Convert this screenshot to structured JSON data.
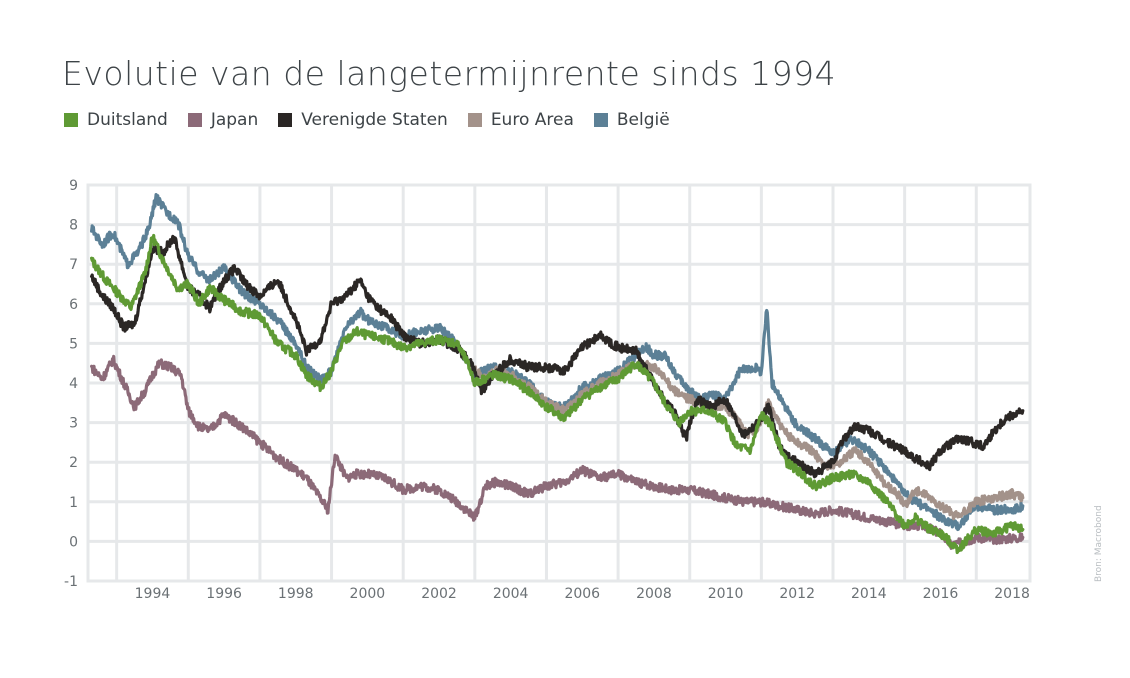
{
  "chart_data": {
    "type": "line",
    "title": "Evolutie van de langetermijnrente sinds 1994",
    "xlabel": "",
    "ylabel": "",
    "xlim": [
      1992.2,
      2018.5
    ],
    "ylim": [
      -1,
      9
    ],
    "y_ticks": [
      "9",
      "8",
      "7",
      "6",
      "5",
      "4",
      "3",
      "2",
      "1",
      "0",
      "-1"
    ],
    "x_ticks": [
      "1994",
      "1996",
      "1998",
      "2000",
      "2002",
      "2004",
      "2006",
      "2008",
      "2010",
      "2012",
      "2014",
      "2016",
      "2018"
    ],
    "grid": true,
    "legend_position": "top-left",
    "series": [
      {
        "name": "Duitsland",
        "color": "#5f9a34",
        "x": [
          1992.3,
          1992.7,
          1993.0,
          1993.4,
          1993.8,
          1994.0,
          1994.3,
          1994.7,
          1995.0,
          1995.3,
          1995.6,
          1996.0,
          1996.5,
          1997.0,
          1997.5,
          1998.0,
          1998.3,
          1998.7,
          1999.0,
          1999.3,
          1999.7,
          2000.0,
          2000.5,
          2001.0,
          2001.5,
          2002.0,
          2002.5,
          2002.8,
          2003.0,
          2003.5,
          2004.0,
          2004.5,
          2005.0,
          2005.5,
          2006.0,
          2006.5,
          2007.0,
          2007.5,
          2008.0,
          2008.3,
          2008.7,
          2009.0,
          2009.5,
          2010.0,
          2010.3,
          2010.7,
          2011.0,
          2011.3,
          2011.7,
          2012.0,
          2012.5,
          2013.0,
          2013.5,
          2014.0,
          2014.5,
          2015.0,
          2015.3,
          2015.7,
          2016.0,
          2016.5,
          2017.0,
          2017.5,
          2018.0,
          2018.3
        ],
        "values": [
          7.1,
          6.6,
          6.3,
          5.9,
          6.8,
          7.7,
          7.1,
          6.4,
          6.5,
          6.0,
          6.4,
          6.1,
          5.8,
          5.7,
          5.0,
          4.7,
          4.2,
          3.9,
          4.3,
          5.0,
          5.3,
          5.2,
          5.1,
          4.9,
          5.0,
          5.1,
          5.0,
          4.5,
          4.0,
          4.2,
          4.1,
          3.8,
          3.4,
          3.1,
          3.6,
          3.9,
          4.1,
          4.5,
          4.0,
          3.5,
          3.0,
          3.3,
          3.3,
          3.0,
          2.4,
          2.3,
          3.2,
          2.9,
          2.0,
          1.8,
          1.4,
          1.6,
          1.7,
          1.5,
          1.0,
          0.4,
          0.6,
          0.3,
          0.2,
          -0.2,
          0.3,
          0.2,
          0.4,
          0.3
        ]
      },
      {
        "name": "Japan",
        "color": "#8c6a78",
        "x": [
          1992.3,
          1992.6,
          1992.9,
          1993.2,
          1993.5,
          1993.8,
          1994.0,
          1994.2,
          1994.5,
          1994.8,
          1995.0,
          1995.3,
          1995.6,
          1996.0,
          1996.5,
          1997.0,
          1997.5,
          1998.0,
          1998.3,
          1998.6,
          1998.9,
          1999.1,
          1999.4,
          1999.7,
          2000.0,
          2000.5,
          2001.0,
          2001.5,
          2002.0,
          2002.5,
          2003.0,
          2003.3,
          2003.6,
          2004.0,
          2004.5,
          2005.0,
          2005.5,
          2006.0,
          2006.5,
          2007.0,
          2007.5,
          2008.0,
          2008.5,
          2009.0,
          2009.5,
          2010.0,
          2010.5,
          2011.0,
          2011.5,
          2012.0,
          2012.5,
          2013.0,
          2013.5,
          2014.0,
          2014.5,
          2015.0,
          2015.5,
          2016.0,
          2016.3,
          2016.7,
          2017.0,
          2017.5,
          2018.0,
          2018.3
        ],
        "values": [
          4.4,
          4.1,
          4.6,
          4.0,
          3.4,
          3.8,
          4.2,
          4.5,
          4.4,
          4.2,
          3.3,
          2.9,
          2.8,
          3.2,
          2.9,
          2.5,
          2.1,
          1.8,
          1.6,
          1.2,
          0.8,
          2.2,
          1.6,
          1.7,
          1.7,
          1.6,
          1.3,
          1.4,
          1.3,
          1.0,
          0.6,
          1.4,
          1.5,
          1.4,
          1.2,
          1.4,
          1.5,
          1.8,
          1.6,
          1.7,
          1.5,
          1.4,
          1.3,
          1.3,
          1.2,
          1.1,
          1.0,
          1.0,
          0.9,
          0.8,
          0.7,
          0.8,
          0.7,
          0.6,
          0.5,
          0.4,
          0.4,
          0.2,
          -0.1,
          0.0,
          0.1,
          0.05,
          0.08,
          0.1
        ]
      },
      {
        "name": "Verenigde Staten",
        "color": "#2b2725",
        "x": [
          1992.3,
          1992.6,
          1992.9,
          1993.2,
          1993.5,
          1993.8,
          1994.0,
          1994.3,
          1994.6,
          1995.0,
          1995.3,
          1995.6,
          1996.0,
          1996.3,
          1996.6,
          1997.0,
          1997.5,
          1998.0,
          1998.3,
          1998.7,
          1999.0,
          1999.4,
          1999.8,
          2000.0,
          2000.3,
          2000.7,
          2001.0,
          2001.5,
          2002.0,
          2002.5,
          2002.9,
          2003.2,
          2003.5,
          2004.0,
          2004.5,
          2005.0,
          2005.5,
          2006.0,
          2006.5,
          2007.0,
          2007.5,
          2008.0,
          2008.2,
          2008.6,
          2008.9,
          2009.2,
          2009.6,
          2010.0,
          2010.5,
          2010.9,
          2011.2,
          2011.5,
          2011.8,
          2012.0,
          2012.5,
          2013.0,
          2013.3,
          2013.6,
          2014.0,
          2014.5,
          2015.0,
          2015.3,
          2015.7,
          2016.0,
          2016.5,
          2016.9,
          2017.2,
          2017.5,
          2017.8,
          2018.0,
          2018.3
        ],
        "values": [
          6.7,
          6.2,
          5.9,
          5.4,
          5.5,
          6.6,
          7.4,
          7.3,
          7.7,
          6.4,
          6.2,
          5.9,
          6.6,
          6.9,
          6.5,
          6.2,
          6.6,
          5.6,
          4.8,
          5.1,
          6.0,
          6.2,
          6.6,
          6.2,
          5.9,
          5.6,
          5.2,
          5.0,
          5.1,
          4.9,
          4.5,
          3.8,
          4.2,
          4.6,
          4.4,
          4.4,
          4.3,
          4.9,
          5.2,
          4.9,
          4.8,
          4.0,
          3.7,
          3.2,
          2.6,
          3.6,
          3.4,
          3.6,
          2.7,
          3.0,
          3.4,
          2.4,
          2.1,
          2.0,
          1.7,
          2.0,
          2.6,
          2.9,
          2.8,
          2.5,
          2.3,
          2.1,
          1.9,
          2.3,
          2.6,
          2.5,
          2.4,
          2.8,
          3.1,
          3.2,
          3.3
        ]
      },
      {
        "name": "Euro Area",
        "color": "#a3928a",
        "x": [
          2002.9,
          2003.3,
          2003.6,
          2004.0,
          2004.5,
          2005.0,
          2005.5,
          2006.0,
          2006.5,
          2007.0,
          2007.5,
          2008.0,
          2008.3,
          2008.7,
          2009.0,
          2009.5,
          2010.0,
          2010.3,
          2010.6,
          2010.9,
          2011.2,
          2011.6,
          2012.0,
          2012.4,
          2012.8,
          2013.2,
          2013.6,
          2014.0,
          2014.4,
          2014.8,
          2015.0,
          2015.3,
          2015.7,
          2016.0,
          2016.5,
          2017.0,
          2017.5,
          2018.0,
          2018.3
        ],
        "values": [
          4.4,
          4.1,
          4.3,
          4.2,
          3.9,
          3.5,
          3.3,
          3.7,
          4.0,
          4.2,
          4.5,
          4.4,
          4.1,
          3.7,
          3.6,
          3.4,
          3.4,
          3.1,
          2.7,
          2.9,
          3.5,
          2.8,
          2.5,
          2.3,
          1.9,
          2.0,
          2.3,
          2.0,
          1.5,
          1.2,
          0.9,
          1.3,
          1.1,
          0.9,
          0.6,
          1.0,
          1.1,
          1.2,
          1.1
        ]
      },
      {
        "name": "België",
        "color": "#5c8096",
        "x": [
          1992.3,
          1992.6,
          1992.9,
          1993.3,
          1993.6,
          1993.9,
          1994.1,
          1994.4,
          1994.7,
          1995.0,
          1995.3,
          1995.6,
          1996.0,
          1996.5,
          1997.0,
          1997.5,
          1998.0,
          1998.3,
          1998.7,
          1999.0,
          1999.4,
          1999.8,
          2000.0,
          2000.5,
          2001.0,
          2001.5,
          2002.0,
          2002.5,
          2003.0,
          2003.5,
          2004.0,
          2004.5,
          2005.0,
          2005.5,
          2006.0,
          2006.5,
          2007.0,
          2007.5,
          2007.8,
          2008.0,
          2008.3,
          2008.7,
          2009.0,
          2009.3,
          2009.6,
          2010.0,
          2010.4,
          2010.8,
          2011.0,
          2011.15,
          2011.3,
          2011.6,
          2012.0,
          2012.5,
          2013.0,
          2013.5,
          2014.0,
          2014.5,
          2015.0,
          2015.3,
          2015.7,
          2016.0,
          2016.5,
          2017.0,
          2017.5,
          2018.0,
          2018.3
        ],
        "values": [
          7.9,
          7.5,
          7.8,
          7.0,
          7.3,
          7.9,
          8.7,
          8.3,
          8.1,
          7.2,
          6.8,
          6.6,
          6.9,
          6.3,
          6.0,
          5.6,
          5.0,
          4.4,
          4.1,
          4.3,
          5.4,
          5.8,
          5.6,
          5.4,
          5.2,
          5.3,
          5.4,
          5.0,
          4.2,
          4.4,
          4.3,
          4.0,
          3.5,
          3.4,
          3.9,
          4.1,
          4.3,
          4.7,
          4.9,
          4.7,
          4.7,
          4.1,
          3.8,
          3.6,
          3.7,
          3.6,
          4.3,
          4.4,
          4.3,
          5.9,
          4.0,
          3.5,
          2.9,
          2.6,
          2.2,
          2.6,
          2.3,
          1.8,
          1.2,
          1.0,
          0.8,
          0.6,
          0.4,
          0.9,
          0.8,
          0.8,
          0.9
        ]
      }
    ]
  },
  "source_note": "Bron: Macrobond"
}
